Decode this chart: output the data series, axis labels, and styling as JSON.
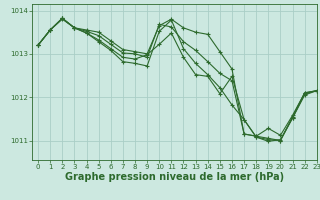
{
  "bg_color": "#cce8e0",
  "line_color": "#2d6a2d",
  "grid_color": "#aacec6",
  "xlabel": "Graphe pression niveau de la mer (hPa)",
  "xlabel_fontsize": 7.0,
  "ylim": [
    1010.55,
    1014.15
  ],
  "xlim": [
    -0.5,
    23
  ],
  "yticks": [
    1011,
    1012,
    1013,
    1014
  ],
  "xticks": [
    0,
    1,
    2,
    3,
    4,
    5,
    6,
    7,
    8,
    9,
    10,
    11,
    12,
    13,
    14,
    15,
    16,
    17,
    18,
    19,
    20,
    21,
    22,
    23
  ],
  "tick_fontsize": 5.0,
  "series": [
    [
      1013.2,
      1013.55,
      1013.8,
      1013.6,
      1013.55,
      1013.5,
      1013.3,
      1013.1,
      1013.05,
      1013.0,
      1013.65,
      1013.8,
      1013.6,
      1013.5,
      1013.45,
      1013.05,
      1012.65,
      1011.15,
      1011.1,
      1011.05,
      1011.0,
      1011.55,
      1012.1,
      1012.15
    ],
    [
      1013.2,
      1013.55,
      1013.82,
      1013.6,
      1013.52,
      1013.42,
      1013.22,
      1013.02,
      1013.0,
      1012.92,
      1013.68,
      1013.62,
      1013.28,
      1013.08,
      1012.82,
      1012.55,
      1012.38,
      1011.15,
      1011.1,
      1011.28,
      1011.12,
      1011.58,
      1012.1,
      1012.15
    ],
    [
      1013.2,
      1013.55,
      1013.82,
      1013.6,
      1013.48,
      1013.32,
      1013.12,
      1012.92,
      1012.88,
      1012.98,
      1013.22,
      1013.48,
      1012.92,
      1012.52,
      1012.48,
      1012.08,
      1012.48,
      1011.48,
      1011.08,
      1011.02,
      1011.0,
      1011.52,
      1012.08,
      1012.15
    ],
    [
      1013.2,
      1013.55,
      1013.82,
      1013.6,
      1013.48,
      1013.28,
      1013.08,
      1012.82,
      1012.78,
      1012.72,
      1013.52,
      1013.78,
      1013.12,
      1012.78,
      1012.52,
      1012.22,
      1011.82,
      1011.48,
      1011.08,
      1010.98,
      1011.02,
      1011.52,
      1012.05,
      1012.15
    ]
  ]
}
